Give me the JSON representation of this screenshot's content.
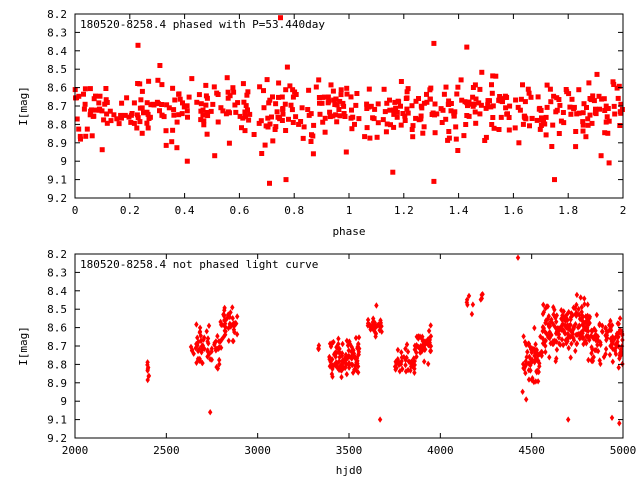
{
  "colors": {
    "points": "#ff0000",
    "axes": "#000000",
    "background": "#ffffff"
  },
  "chart_data": [
    {
      "type": "scatter",
      "title": "180520-8258.4 phased with P=53.440day",
      "xlabel": "phase",
      "ylabel": "I[mag]",
      "xlim": [
        0,
        2
      ],
      "ylim": [
        8.2,
        9.2
      ],
      "y_inverted": true,
      "grid": false,
      "xticks": [
        0,
        0.2,
        0.4,
        0.6,
        0.8,
        1,
        1.2,
        1.4,
        1.6,
        1.8,
        2
      ],
      "xtick_labels": [
        "0",
        "0.2",
        "0.4",
        "0.6",
        "0.8",
        "1",
        "1.2",
        "1.4",
        "1.6",
        "1.8",
        "2"
      ],
      "yticks": [
        8.2,
        8.3,
        8.4,
        8.5,
        8.6,
        8.7,
        8.8,
        8.9,
        9,
        9.1,
        9.2
      ],
      "ytick_labels": [
        "8.2",
        "8.3",
        "8.4",
        "8.5",
        "8.6",
        "8.7",
        "8.8",
        "8.9",
        "9",
        "9.1",
        "9.2"
      ],
      "marker": "square",
      "seed": 7,
      "bands": [
        {
          "x0": 0.0,
          "x1": 2.0,
          "center": 8.72,
          "spread": 0.14,
          "n": 520
        }
      ],
      "points": [
        [
          0.41,
          9.0
        ],
        [
          0.71,
          9.12
        ],
        [
          0.77,
          9.1
        ],
        [
          1.31,
          9.11
        ],
        [
          1.75,
          9.1
        ],
        [
          1.16,
          9.06
        ],
        [
          0.23,
          8.37
        ],
        [
          0.75,
          8.22
        ],
        [
          1.31,
          8.36
        ],
        [
          1.43,
          8.38
        ],
        [
          0.51,
          8.97
        ],
        [
          0.87,
          8.96
        ],
        [
          0.02,
          8.88
        ],
        [
          1.62,
          8.9
        ],
        [
          1.92,
          8.97
        ],
        [
          0.99,
          8.95
        ],
        [
          1.74,
          8.92
        ],
        [
          0.31,
          8.48
        ]
      ]
    },
    {
      "type": "scatter",
      "title": "180520-8258.4 not phased light curve",
      "xlabel": "hjd0",
      "ylabel": "I[mag]",
      "xlim": [
        2000,
        5000
      ],
      "ylim": [
        8.2,
        9.2
      ],
      "y_inverted": true,
      "grid": false,
      "xticks": [
        2000,
        2500,
        3000,
        3500,
        4000,
        4500,
        5000
      ],
      "xtick_labels": [
        "2000",
        "2500",
        "3000",
        "3500",
        "4000",
        "4500",
        "5000"
      ],
      "yticks": [
        8.2,
        8.3,
        8.4,
        8.5,
        8.6,
        8.7,
        8.8,
        8.9,
        9,
        9.1,
        9.2
      ],
      "ytick_labels": [
        "8.2",
        "8.3",
        "8.4",
        "8.5",
        "8.6",
        "8.7",
        "8.8",
        "8.9",
        "9",
        "9.1",
        "9.2"
      ],
      "marker": "diamond",
      "seed": 13,
      "bands": [
        {
          "x0": 2395,
          "x1": 2405,
          "center": 8.84,
          "spread": 0.05,
          "n": 8
        },
        {
          "x0": 2630,
          "x1": 2650,
          "center": 8.72,
          "spread": 0.02,
          "n": 4
        },
        {
          "x0": 2660,
          "x1": 2800,
          "center": 8.7,
          "spread": 0.1,
          "n": 60
        },
        {
          "x0": 2800,
          "x1": 2890,
          "center": 8.58,
          "spread": 0.09,
          "n": 45
        },
        {
          "x0": 3330,
          "x1": 3345,
          "center": 8.72,
          "spread": 0.04,
          "n": 4
        },
        {
          "x0": 3390,
          "x1": 3560,
          "center": 8.76,
          "spread": 0.09,
          "n": 110
        },
        {
          "x0": 3600,
          "x1": 3680,
          "center": 8.6,
          "spread": 0.06,
          "n": 30
        },
        {
          "x0": 3750,
          "x1": 3860,
          "center": 8.78,
          "spread": 0.07,
          "n": 40
        },
        {
          "x0": 3860,
          "x1": 3950,
          "center": 8.7,
          "spread": 0.07,
          "n": 45
        },
        {
          "x0": 4140,
          "x1": 4180,
          "center": 8.48,
          "spread": 0.04,
          "n": 6
        },
        {
          "x0": 4220,
          "x1": 4240,
          "center": 8.43,
          "spread": 0.03,
          "n": 4
        },
        {
          "x0": 4450,
          "x1": 4560,
          "center": 8.78,
          "spread": 0.12,
          "n": 60
        },
        {
          "x0": 4560,
          "x1": 4820,
          "center": 8.6,
          "spread": 0.12,
          "n": 200
        },
        {
          "x0": 4820,
          "x1": 5000,
          "center": 8.68,
          "spread": 0.13,
          "n": 95
        }
      ],
      "points": [
        [
          2740,
          9.06
        ],
        [
          3670,
          9.1
        ],
        [
          4425,
          8.22
        ],
        [
          4980,
          9.12
        ],
        [
          4470,
          8.99
        ],
        [
          4700,
          9.1
        ],
        [
          4940,
          9.09
        ],
        [
          3650,
          8.48
        ]
      ]
    }
  ]
}
